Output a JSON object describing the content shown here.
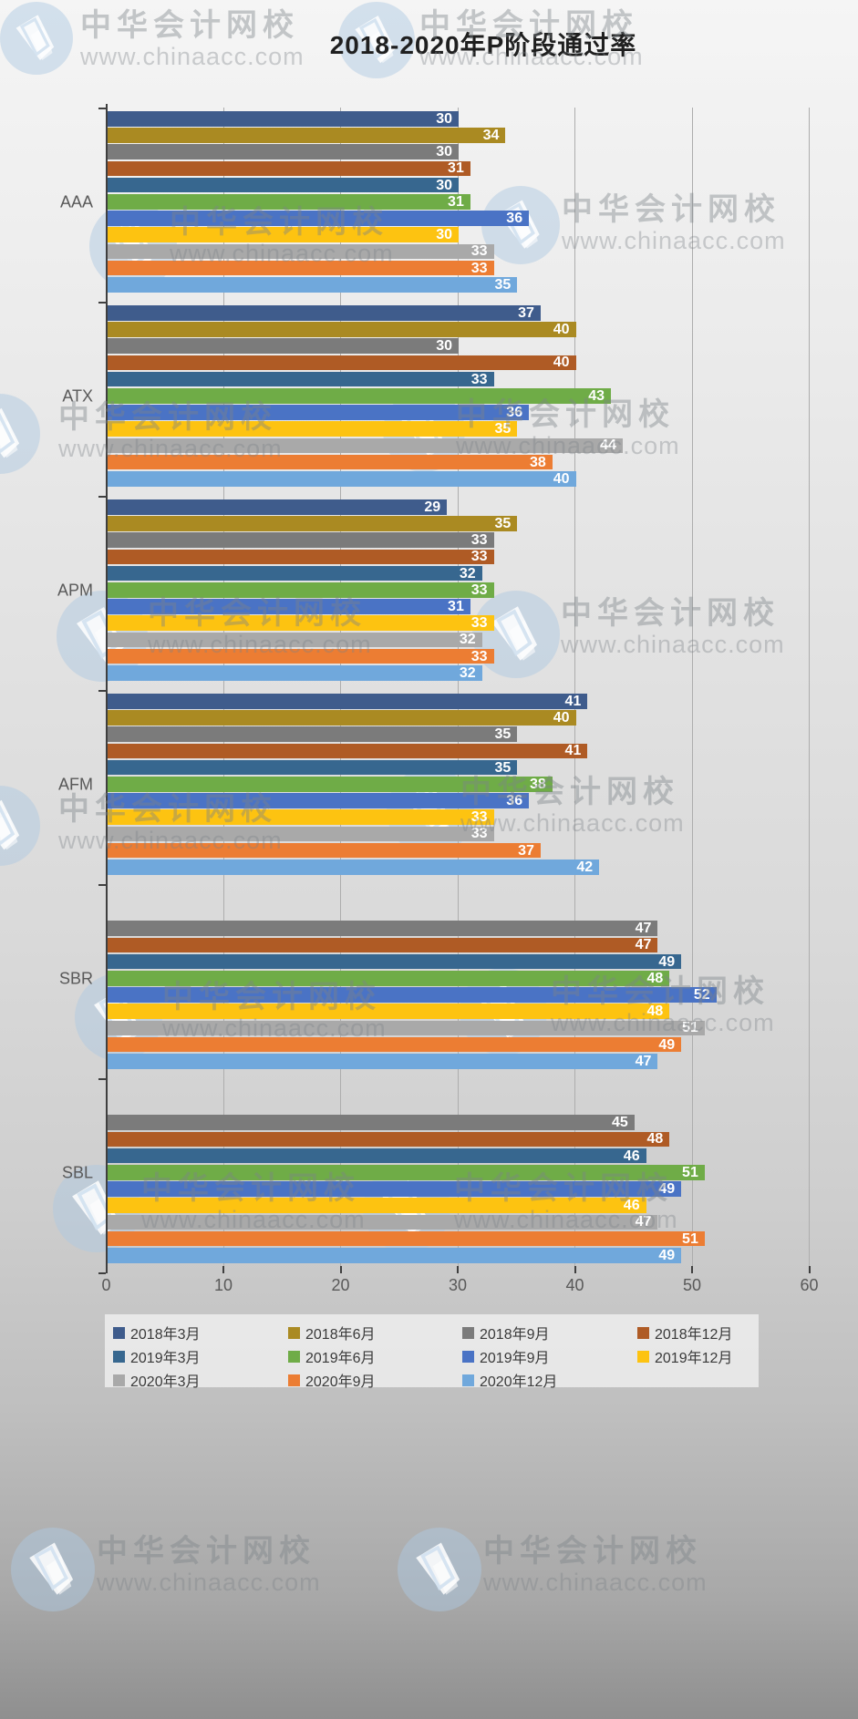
{
  "title": "2018-2020年P阶段通过率",
  "watermark": {
    "brand": "中华会计网校",
    "url": "www.chinaacc.com"
  },
  "chart_data": {
    "type": "bar",
    "orientation": "horizontal",
    "title": "2018-2020年P阶段通过率",
    "categories": [
      "AAA",
      "ATX",
      "APM",
      "AFM",
      "SBR",
      "SBL"
    ],
    "series": [
      {
        "name": "2018年3月",
        "color": "#3F5C8C",
        "values": [
          30,
          37,
          29,
          41,
          null,
          null
        ]
      },
      {
        "name": "2018年6月",
        "color": "#AA8A22",
        "values": [
          34,
          40,
          35,
          40,
          null,
          null
        ]
      },
      {
        "name": "2018年9月",
        "color": "#7B7B7B",
        "values": [
          30,
          30,
          33,
          35,
          47,
          45
        ]
      },
      {
        "name": "2018年12月",
        "color": "#AF5B25",
        "values": [
          31,
          40,
          33,
          41,
          47,
          48
        ]
      },
      {
        "name": "2019年3月",
        "color": "#37678F",
        "values": [
          30,
          33,
          32,
          35,
          49,
          46
        ]
      },
      {
        "name": "2019年6月",
        "color": "#6FAC47",
        "values": [
          31,
          43,
          33,
          38,
          48,
          51
        ]
      },
      {
        "name": "2019年9月",
        "color": "#4A73C5",
        "values": [
          36,
          36,
          31,
          36,
          52,
          49
        ]
      },
      {
        "name": "2019年12月",
        "color": "#FDC311",
        "values": [
          30,
          35,
          33,
          33,
          48,
          46
        ]
      },
      {
        "name": "2020年3月",
        "color": "#A9A9A9",
        "values": [
          33,
          44,
          32,
          33,
          51,
          47
        ]
      },
      {
        "name": "2020年9月",
        "color": "#EC7D33",
        "values": [
          33,
          38,
          33,
          37,
          49,
          51
        ]
      },
      {
        "name": "2020年12月",
        "color": "#70A8DC",
        "values": [
          35,
          40,
          32,
          42,
          47,
          49
        ]
      }
    ],
    "x_axis": {
      "ticks": [
        0,
        10,
        20,
        30,
        40,
        50,
        60
      ],
      "min": 0,
      "max": 60
    },
    "grid": true,
    "legend_position": "bottom",
    "value_labels": "inside-end"
  }
}
